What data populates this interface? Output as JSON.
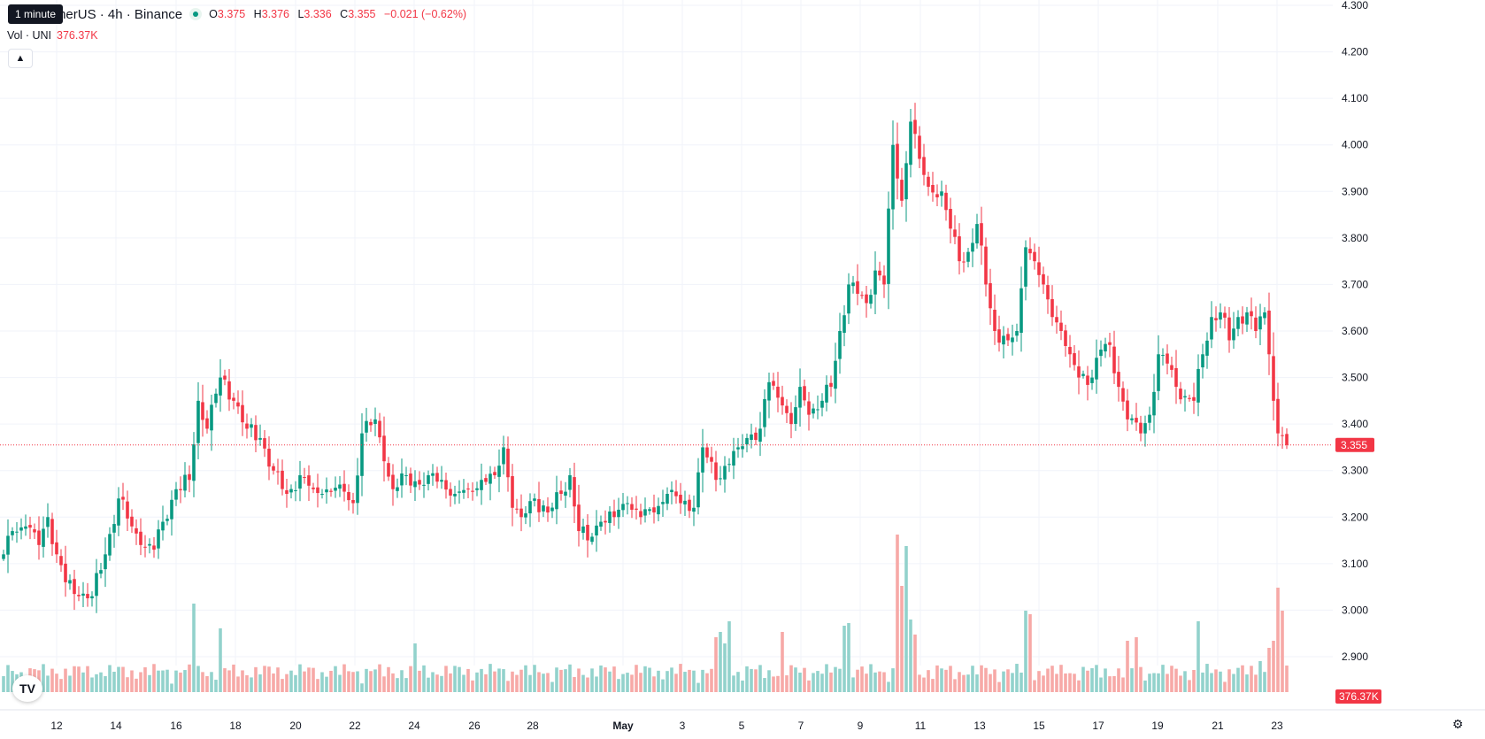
{
  "legend": {
    "symbol": "UNI / TetherUS · 4h · Binance",
    "tooltip": "1 minute",
    "open_key": "O",
    "open": "3.375",
    "high_key": "H",
    "high": "3.376",
    "low_key": "L",
    "low": "3.336",
    "close_key": "C",
    "close": "3.355",
    "change": "−0.021 (−0.62%)"
  },
  "volume": {
    "label": "Vol · UNI",
    "value": "376.37K"
  },
  "controls": {
    "collapse_icon": "chevron-up-icon",
    "logo": "TV",
    "settings_icon": "gear-icon"
  },
  "colors": {
    "up": "#089981",
    "down": "#f23645",
    "up_volume": "#92d2cc",
    "down_volume": "#f7a9a7"
  },
  "chart_data": {
    "type": "candlestick",
    "timeframe": "4h",
    "y_ticks": [
      "4.300",
      "4.200",
      "4.100",
      "4.000",
      "3.900",
      "3.800",
      "3.700",
      "3.600",
      "3.500",
      "3.400",
      "3.300",
      "3.200",
      "3.100",
      "3.000",
      "2.900"
    ],
    "ylim": [
      2.88,
      4.31
    ],
    "x_ticks": [
      "12",
      "14",
      "16",
      "18",
      "20",
      "22",
      "24",
      "26",
      "28",
      "May",
      "3",
      "5",
      "7",
      "9",
      "11",
      "13",
      "15",
      "17",
      "19",
      "21",
      "23"
    ],
    "last_price": "3.355",
    "last_volume": "376.37K",
    "grid": true,
    "anchors": [
      {
        "c": 0,
        "p": 3.12
      },
      {
        "c": 2,
        "p": 3.17
      },
      {
        "c": 5,
        "p": 3.18
      },
      {
        "c": 8,
        "p": 3.14
      },
      {
        "c": 10,
        "p": 3.2
      },
      {
        "c": 12,
        "p": 3.12
      },
      {
        "c": 14,
        "p": 3.06
      },
      {
        "c": 17,
        "p": 3.03
      },
      {
        "c": 20,
        "p": 3.03
      },
      {
        "c": 23,
        "p": 3.12
      },
      {
        "c": 26,
        "p": 3.24
      },
      {
        "c": 29,
        "p": 3.18
      },
      {
        "c": 31,
        "p": 3.14
      },
      {
        "c": 34,
        "p": 3.13
      },
      {
        "c": 36,
        "p": 3.19
      },
      {
        "c": 39,
        "p": 3.26
      },
      {
        "c": 42,
        "p": 3.28
      },
      {
        "c": 44,
        "p": 3.45
      },
      {
        "c": 46,
        "p": 3.39
      },
      {
        "c": 49,
        "p": 3.5
      },
      {
        "c": 52,
        "p": 3.45
      },
      {
        "c": 55,
        "p": 3.39
      },
      {
        "c": 58,
        "p": 3.37
      },
      {
        "c": 61,
        "p": 3.3
      },
      {
        "c": 64,
        "p": 3.25
      },
      {
        "c": 67,
        "p": 3.29
      },
      {
        "c": 70,
        "p": 3.26
      },
      {
        "c": 72,
        "p": 3.25
      },
      {
        "c": 76,
        "p": 3.27
      },
      {
        "c": 79,
        "p": 3.23
      },
      {
        "c": 81,
        "p": 3.38
      },
      {
        "c": 84,
        "p": 3.41
      },
      {
        "c": 86,
        "p": 3.32
      },
      {
        "c": 88,
        "p": 3.26
      },
      {
        "c": 91,
        "p": 3.29
      },
      {
        "c": 94,
        "p": 3.27
      },
      {
        "c": 96,
        "p": 3.29
      },
      {
        "c": 99,
        "p": 3.28
      },
      {
        "c": 102,
        "p": 3.25
      },
      {
        "c": 105,
        "p": 3.26
      },
      {
        "c": 108,
        "p": 3.28
      },
      {
        "c": 111,
        "p": 3.29
      },
      {
        "c": 113,
        "p": 3.35
      },
      {
        "c": 115,
        "p": 3.22
      },
      {
        "c": 117,
        "p": 3.2
      },
      {
        "c": 120,
        "p": 3.24
      },
      {
        "c": 123,
        "p": 3.21
      },
      {
        "c": 126,
        "p": 3.25
      },
      {
        "c": 128,
        "p": 3.29
      },
      {
        "c": 130,
        "p": 3.17
      },
      {
        "c": 132,
        "p": 3.15
      },
      {
        "c": 135,
        "p": 3.19
      },
      {
        "c": 138,
        "p": 3.2
      },
      {
        "c": 141,
        "p": 3.23
      },
      {
        "c": 144,
        "p": 3.2
      },
      {
        "c": 147,
        "p": 3.21
      },
      {
        "c": 150,
        "p": 3.25
      },
      {
        "c": 153,
        "p": 3.23
      },
      {
        "c": 156,
        "p": 3.22
      },
      {
        "c": 158,
        "p": 3.35
      },
      {
        "c": 161,
        "p": 3.28
      },
      {
        "c": 163,
        "p": 3.31
      },
      {
        "c": 166,
        "p": 3.35
      },
      {
        "c": 168,
        "p": 3.37
      },
      {
        "c": 171,
        "p": 3.39
      },
      {
        "c": 173,
        "p": 3.49
      },
      {
        "c": 176,
        "p": 3.44
      },
      {
        "c": 178,
        "p": 3.4
      },
      {
        "c": 180,
        "p": 3.48
      },
      {
        "c": 182,
        "p": 3.42
      },
      {
        "c": 185,
        "p": 3.45
      },
      {
        "c": 187,
        "p": 3.48
      },
      {
        "c": 189,
        "p": 3.6
      },
      {
        "c": 191,
        "p": 3.7
      },
      {
        "c": 193,
        "p": 3.68
      },
      {
        "c": 195,
        "p": 3.66
      },
      {
        "c": 197,
        "p": 3.73
      },
      {
        "c": 199,
        "p": 3.7
      },
      {
        "c": 201,
        "p": 4.0
      },
      {
        "c": 203,
        "p": 3.88
      },
      {
        "c": 205,
        "p": 4.05
      },
      {
        "c": 207,
        "p": 3.97
      },
      {
        "c": 209,
        "p": 3.91
      },
      {
        "c": 212,
        "p": 3.9
      },
      {
        "c": 214,
        "p": 3.82
      },
      {
        "c": 216,
        "p": 3.75
      },
      {
        "c": 218,
        "p": 3.77
      },
      {
        "c": 220,
        "p": 3.83
      },
      {
        "c": 222,
        "p": 3.7
      },
      {
        "c": 224,
        "p": 3.6
      },
      {
        "c": 227,
        "p": 3.58
      },
      {
        "c": 229,
        "p": 3.6
      },
      {
        "c": 231,
        "p": 3.78
      },
      {
        "c": 233,
        "p": 3.75
      },
      {
        "c": 235,
        "p": 3.7
      },
      {
        "c": 237,
        "p": 3.63
      },
      {
        "c": 239,
        "p": 3.6
      },
      {
        "c": 241,
        "p": 3.55
      },
      {
        "c": 243,
        "p": 3.5
      },
      {
        "c": 246,
        "p": 3.5
      },
      {
        "c": 248,
        "p": 3.56
      },
      {
        "c": 250,
        "p": 3.57
      },
      {
        "c": 252,
        "p": 3.48
      },
      {
        "c": 254,
        "p": 3.41
      },
      {
        "c": 257,
        "p": 3.38
      },
      {
        "c": 259,
        "p": 3.42
      },
      {
        "c": 261,
        "p": 3.55
      },
      {
        "c": 263,
        "p": 3.53
      },
      {
        "c": 265,
        "p": 3.48
      },
      {
        "c": 267,
        "p": 3.46
      },
      {
        "c": 269,
        "p": 3.45
      },
      {
        "c": 271,
        "p": 3.55
      },
      {
        "c": 273,
        "p": 3.63
      },
      {
        "c": 275,
        "p": 3.64
      },
      {
        "c": 277,
        "p": 3.58
      },
      {
        "c": 279,
        "p": 3.63
      },
      {
        "c": 281,
        "p": 3.64
      },
      {
        "c": 283,
        "p": 3.6
      },
      {
        "c": 285,
        "p": 3.64
      },
      {
        "c": 286,
        "p": 3.55
      },
      {
        "c": 287,
        "p": 3.45
      },
      {
        "c": 288,
        "p": 3.38
      },
      {
        "c": 289,
        "p": 3.375
      },
      {
        "c": 290,
        "p": 3.355
      }
    ],
    "volume_spikes": [
      {
        "c": 43,
        "v": 100
      },
      {
        "c": 49,
        "v": 72
      },
      {
        "c": 93,
        "v": 55
      },
      {
        "c": 161,
        "v": 62
      },
      {
        "c": 162,
        "v": 68
      },
      {
        "c": 163,
        "v": 55
      },
      {
        "c": 164,
        "v": 80
      },
      {
        "c": 176,
        "v": 68
      },
      {
        "c": 190,
        "v": 75
      },
      {
        "c": 191,
        "v": 78
      },
      {
        "c": 202,
        "v": 178
      },
      {
        "c": 203,
        "v": 120
      },
      {
        "c": 204,
        "v": 165
      },
      {
        "c": 205,
        "v": 82
      },
      {
        "c": 206,
        "v": 65
      },
      {
        "c": 231,
        "v": 92
      },
      {
        "c": 232,
        "v": 88
      },
      {
        "c": 254,
        "v": 58
      },
      {
        "c": 256,
        "v": 62
      },
      {
        "c": 270,
        "v": 80
      },
      {
        "c": 284,
        "v": 35
      },
      {
        "c": 286,
        "v": 50
      },
      {
        "c": 287,
        "v": 58
      },
      {
        "c": 288,
        "v": 118
      },
      {
        "c": 289,
        "v": 92
      }
    ]
  }
}
